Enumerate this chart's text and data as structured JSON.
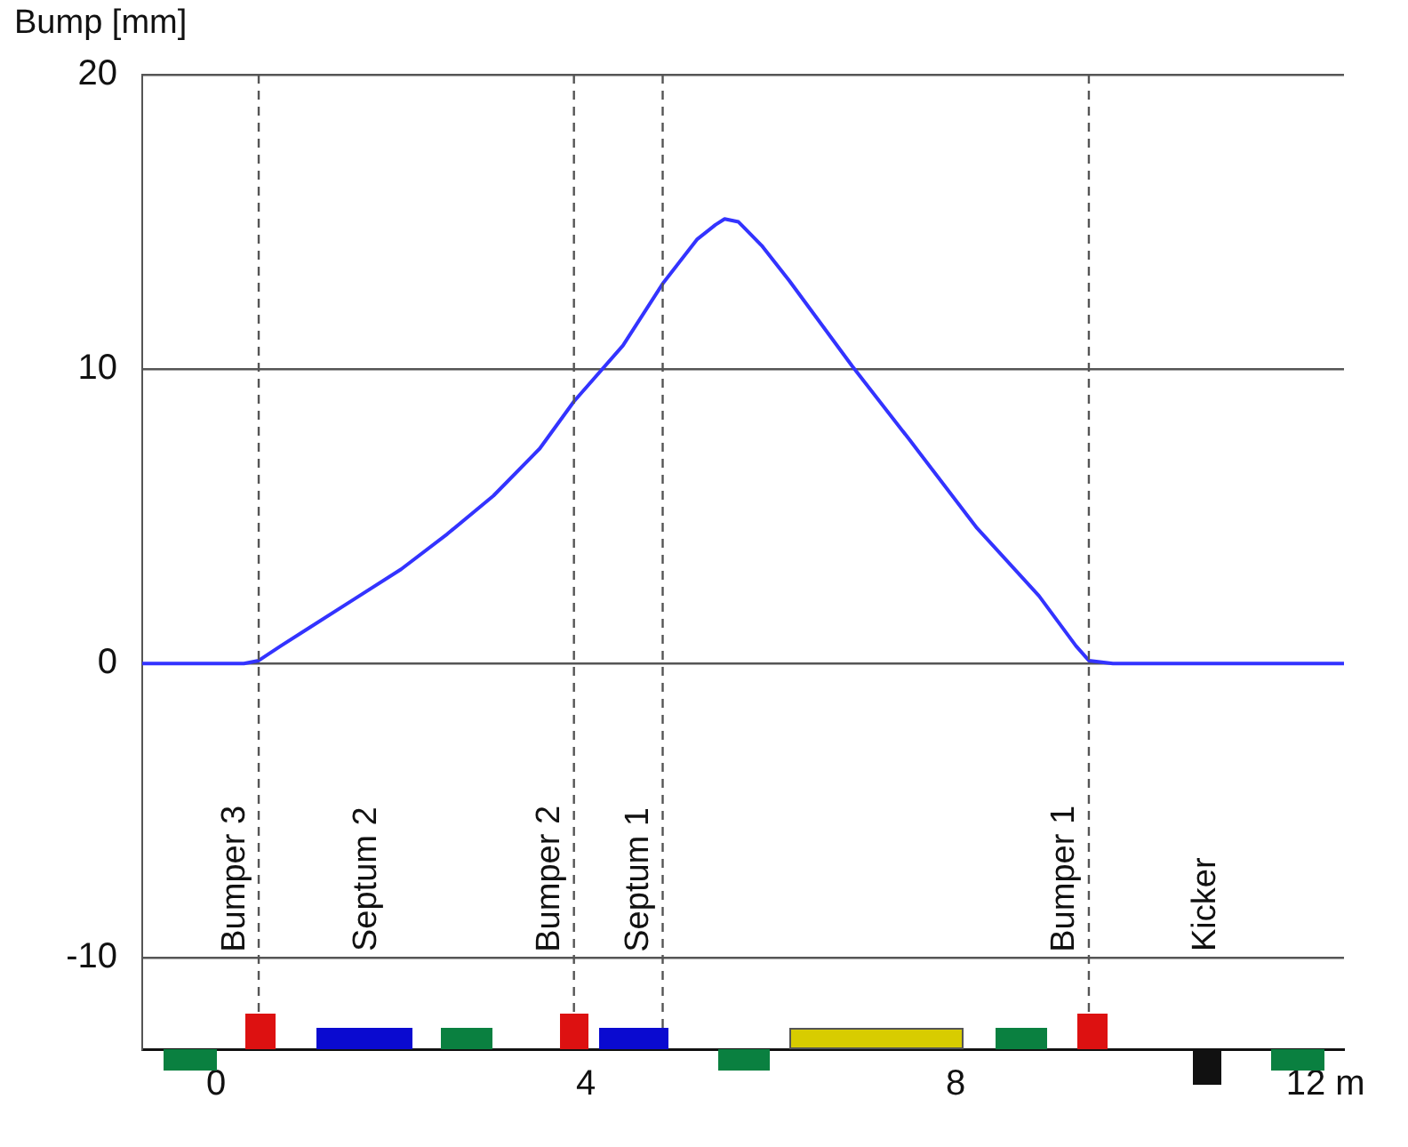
{
  "chart_data": {
    "type": "line",
    "ylabel": "Bump [mm]",
    "x": [
      -0.8,
      0.0,
      0.3,
      0.46,
      0.7,
      1.0,
      1.5,
      2.0,
      2.5,
      3.0,
      3.5,
      3.87,
      4.4,
      4.83,
      5.2,
      5.4,
      5.5,
      5.65,
      5.9,
      6.2,
      6.88,
      7.5,
      8.23,
      8.9,
      9.3,
      9.44,
      9.7,
      10.5,
      12.2
    ],
    "series": [
      {
        "color": "#3333ff",
        "values": [
          0,
          0,
          0,
          0.1,
          0.6,
          1.2,
          2.2,
          3.2,
          4.4,
          5.7,
          7.3,
          8.9,
          10.8,
          12.9,
          14.4,
          14.9,
          15.1,
          15.0,
          14.2,
          13.0,
          10.1,
          7.6,
          4.6,
          2.3,
          0.6,
          0.1,
          0,
          0,
          0
        ]
      }
    ],
    "xlim": [
      -0.8,
      12.2
    ],
    "xticks": [
      0,
      4,
      8,
      {
        "value": 12,
        "label": "12 m"
      }
    ],
    "ylim": [
      -13.1,
      20
    ],
    "yticks": [
      -10,
      0,
      10,
      20
    ],
    "grid": "y",
    "marker": "none",
    "line_style": "solid",
    "legend": false,
    "ref_lines": [
      {
        "axis": "x",
        "value": 0.46,
        "label": "Bumper 3",
        "line_style": "dashed",
        "color": "#555555"
      },
      {
        "axis": "x",
        "value": 3.87,
        "label": "Bumper 2",
        "line_style": "dashed",
        "color": "#555555"
      },
      {
        "axis": "x",
        "value": 4.83,
        "label": "Septum 1",
        "line_style": "dashed",
        "color": "#555555"
      },
      {
        "axis": "x",
        "value": 9.44,
        "label": "Bumper 1",
        "line_style": "dashed",
        "color": "#555555"
      }
    ],
    "annotations": [
      "Septum 2",
      "Kicker"
    ]
  }
}
